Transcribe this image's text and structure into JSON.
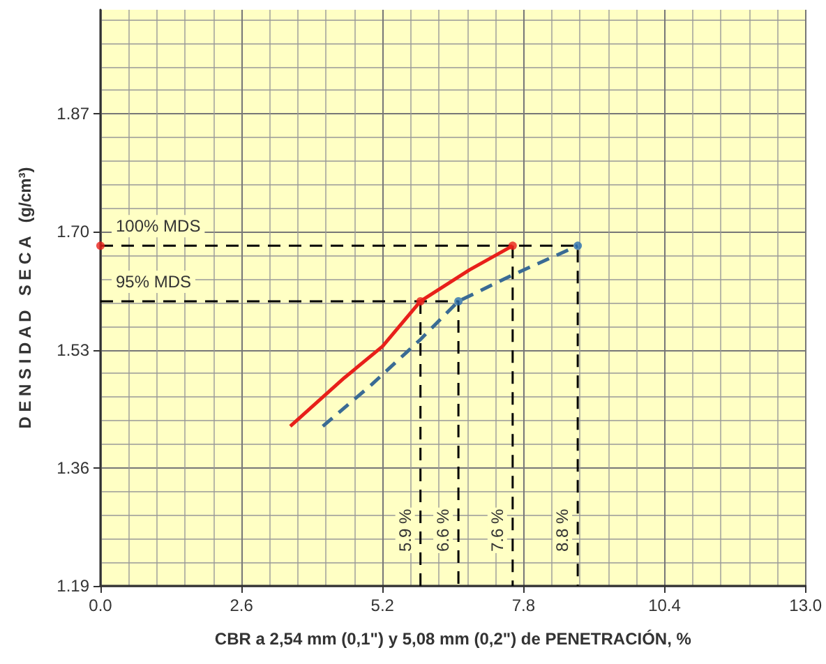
{
  "chart_data": {
    "type": "line",
    "xlabel": "CBR a 2,54 mm (0,1\") y 5,08 mm (0,2\") de PENETRACIÓN, %",
    "ylabel": "D E N S I D A D   S E C A   (g/cm³)",
    "xlim": [
      0,
      13
    ],
    "xticks": [
      {
        "value": 0,
        "label": "0.0"
      },
      2.6,
      5.2,
      7.8,
      10.4,
      {
        "value": 13,
        "label": "13.0"
      }
    ],
    "ylim": [
      1.19,
      2.02
    ],
    "yticks": [
      1.19,
      1.36,
      1.53,
      {
        "value": 1.7,
        "label": "1.70"
      },
      1.87
    ],
    "grid": true,
    "marker": "none",
    "series": [
      {
        "type": "line",
        "color": "#000000",
        "line_style": "dashed",
        "x": [
          0,
          8.8,
          8.8
        ],
        "values": [
          1.68,
          1.68,
          1.19
        ]
      },
      {
        "type": "line",
        "color": "#000000",
        "line_style": "dashed",
        "x": [
          0,
          6.6,
          6.6
        ],
        "values": [
          1.6,
          1.6,
          1.19
        ]
      },
      {
        "type": "line",
        "color": "#000000",
        "line_style": "dashed",
        "x": [
          5.9,
          5.9
        ],
        "values": [
          1.6,
          1.19
        ]
      },
      {
        "type": "line",
        "color": "#000000",
        "line_style": "dashed",
        "x": [
          7.6,
          7.6
        ],
        "values": [
          1.68,
          1.19
        ]
      },
      {
        "color": "#e8201a",
        "line_style": "solid",
        "x": [
          3.5,
          4.5,
          5.2,
          5.9,
          6.8,
          7.6
        ],
        "values": [
          1.42,
          1.49,
          1.535,
          1.6,
          1.645,
          1.68
        ]
      },
      {
        "color": "#3a6b94",
        "line_style": "dashed",
        "x": [
          4.1,
          5.0,
          5.9,
          6.6,
          7.6,
          8.8
        ],
        "values": [
          1.42,
          1.48,
          1.545,
          1.6,
          1.638,
          1.68
        ]
      },
      {
        "type": "scatter",
        "color": "#e8201a",
        "marker": "circle",
        "x": [
          0,
          5.9,
          7.6
        ],
        "values": [
          1.68,
          1.6,
          1.68
        ]
      },
      {
        "type": "scatter",
        "color": "#2a6fb0",
        "marker": "circle",
        "x": [
          6.6,
          8.8
        ],
        "values": [
          1.6,
          1.68
        ]
      }
    ],
    "annotations": [
      {
        "text": "100% MDS",
        "x": 0,
        "y": 1.68
      },
      {
        "text": "95% MDS",
        "x": 0,
        "y": 1.6
      },
      {
        "text": "5.9 %",
        "x": 5.9,
        "y": 1.27
      },
      {
        "text": "6.6 %",
        "x": 6.6,
        "y": 1.27
      },
      {
        "text": "7.6 %",
        "x": 7.6,
        "y": 1.27
      },
      {
        "text": "8.8 %",
        "x": 8.8,
        "y": 1.27
      }
    ]
  }
}
